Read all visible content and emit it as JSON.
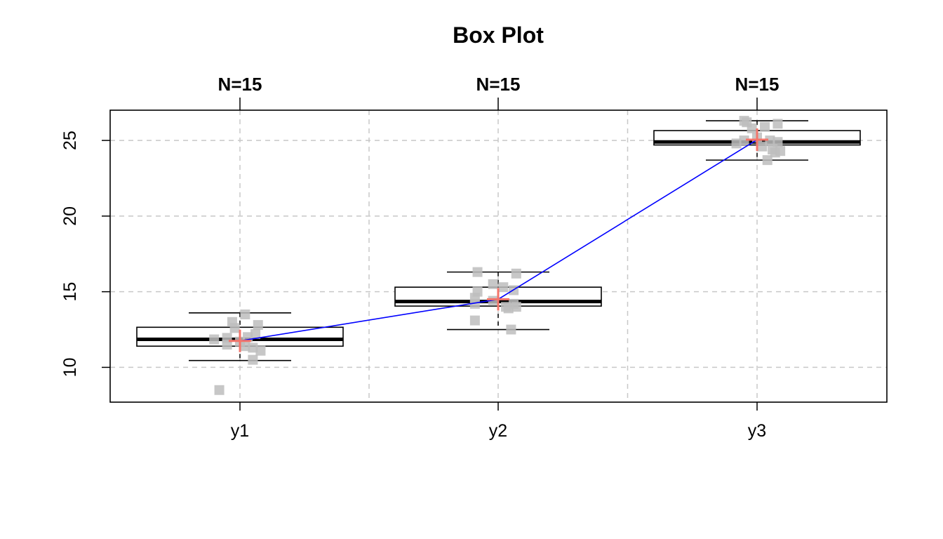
{
  "chart_data": {
    "type": "box",
    "title": "Box Plot",
    "categories": [
      "y1",
      "y2",
      "y3"
    ],
    "n_labels": [
      "N=15",
      "N=15",
      "N=15"
    ],
    "ylim": [
      7.7,
      27
    ],
    "yticks": [
      10,
      15,
      20,
      25
    ],
    "grid": true,
    "colors": {
      "box": "#000000",
      "points": "#bdbdbd",
      "mean_marker": "#f4756b",
      "mean_line": "#0000ff",
      "grid": "#c8c8c8"
    },
    "boxes": [
      {
        "name": "y1",
        "whisker_low": 10.45,
        "q1": 11.4,
        "median": 11.85,
        "q3": 12.65,
        "whisker_high": 13.6,
        "mean": 11.75
      },
      {
        "name": "y2",
        "whisker_low": 12.5,
        "q1": 14.05,
        "median": 14.35,
        "q3": 15.3,
        "whisker_high": 16.3,
        "mean": 14.5
      },
      {
        "name": "y3",
        "whisker_low": 23.7,
        "q1": 24.7,
        "median": 24.9,
        "q3": 25.65,
        "whisker_high": 26.3,
        "mean": 25.05
      }
    ],
    "points": [
      {
        "group": "y1",
        "jitter": -0.08,
        "value": 8.5
      },
      {
        "group": "y1",
        "jitter": -0.1,
        "value": 11.85
      },
      {
        "group": "y1",
        "jitter": -0.05,
        "value": 11.95
      },
      {
        "group": "y1",
        "jitter": -0.05,
        "value": 11.5
      },
      {
        "group": "y1",
        "jitter": -0.03,
        "value": 13.0
      },
      {
        "group": "y1",
        "jitter": -0.02,
        "value": 12.6
      },
      {
        "group": "y1",
        "jitter": 0.0,
        "value": 11.7
      },
      {
        "group": "y1",
        "jitter": 0.02,
        "value": 11.4
      },
      {
        "group": "y1",
        "jitter": 0.02,
        "value": 13.5
      },
      {
        "group": "y1",
        "jitter": 0.05,
        "value": 10.5
      },
      {
        "group": "y1",
        "jitter": 0.05,
        "value": 11.3
      },
      {
        "group": "y1",
        "jitter": 0.06,
        "value": 12.2
      },
      {
        "group": "y1",
        "jitter": 0.07,
        "value": 12.8
      },
      {
        "group": "y1",
        "jitter": 0.08,
        "value": 11.1
      },
      {
        "group": "y1",
        "jitter": 0.03,
        "value": 12.0
      },
      {
        "group": "y2",
        "jitter": -0.09,
        "value": 13.1
      },
      {
        "group": "y2",
        "jitter": -0.09,
        "value": 14.2
      },
      {
        "group": "y2",
        "jitter": -0.09,
        "value": 14.6
      },
      {
        "group": "y2",
        "jitter": -0.08,
        "value": 15.0
      },
      {
        "group": "y2",
        "jitter": -0.08,
        "value": 16.3
      },
      {
        "group": "y2",
        "jitter": -0.02,
        "value": 15.5
      },
      {
        "group": "y2",
        "jitter": -0.02,
        "value": 14.4
      },
      {
        "group": "y2",
        "jitter": 0.02,
        "value": 15.3
      },
      {
        "group": "y2",
        "jitter": 0.03,
        "value": 14.0
      },
      {
        "group": "y2",
        "jitter": 0.04,
        "value": 13.9
      },
      {
        "group": "y2",
        "jitter": 0.05,
        "value": 12.5
      },
      {
        "group": "y2",
        "jitter": 0.06,
        "value": 14.2
      },
      {
        "group": "y2",
        "jitter": 0.06,
        "value": 15.1
      },
      {
        "group": "y2",
        "jitter": 0.07,
        "value": 16.2
      },
      {
        "group": "y2",
        "jitter": 0.07,
        "value": 14.0
      },
      {
        "group": "y3",
        "jitter": -0.08,
        "value": 24.8
      },
      {
        "group": "y3",
        "jitter": -0.05,
        "value": 26.3
      },
      {
        "group": "y3",
        "jitter": -0.05,
        "value": 25.0
      },
      {
        "group": "y3",
        "jitter": -0.04,
        "value": 26.2
      },
      {
        "group": "y3",
        "jitter": -0.02,
        "value": 25.8
      },
      {
        "group": "y3",
        "jitter": 0.0,
        "value": 25.2
      },
      {
        "group": "y3",
        "jitter": 0.02,
        "value": 24.6
      },
      {
        "group": "y3",
        "jitter": 0.03,
        "value": 25.9
      },
      {
        "group": "y3",
        "jitter": 0.04,
        "value": 23.7
      },
      {
        "group": "y3",
        "jitter": 0.05,
        "value": 25.0
      },
      {
        "group": "y3",
        "jitter": 0.06,
        "value": 24.4
      },
      {
        "group": "y3",
        "jitter": 0.07,
        "value": 24.2
      },
      {
        "group": "y3",
        "jitter": 0.09,
        "value": 24.3
      },
      {
        "group": "y3",
        "jitter": 0.08,
        "value": 24.9
      },
      {
        "group": "y3",
        "jitter": 0.08,
        "value": 26.1
      }
    ]
  }
}
